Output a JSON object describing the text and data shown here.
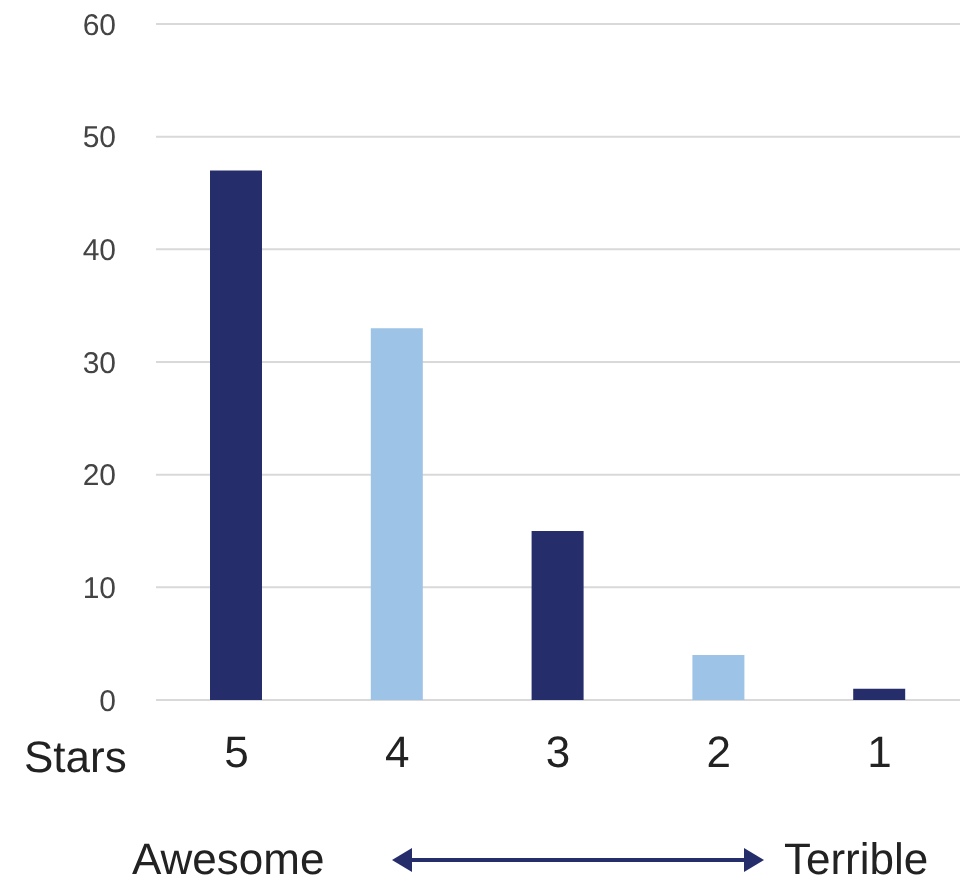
{
  "chart_data": {
    "type": "bar",
    "xlabel": "Stars",
    "categories": [
      "5",
      "4",
      "3",
      "2",
      "1"
    ],
    "values": [
      47,
      33,
      15,
      4,
      1
    ],
    "colors": [
      "#262d6b",
      "#9dc3e6",
      "#262d6b",
      "#9dc3e6",
      "#262d6b"
    ],
    "ylim": [
      0,
      60
    ],
    "yticks": [
      0,
      10,
      20,
      30,
      40,
      50,
      60
    ],
    "grid": "y",
    "annotations": [
      "Awesome",
      "Terrible"
    ]
  }
}
